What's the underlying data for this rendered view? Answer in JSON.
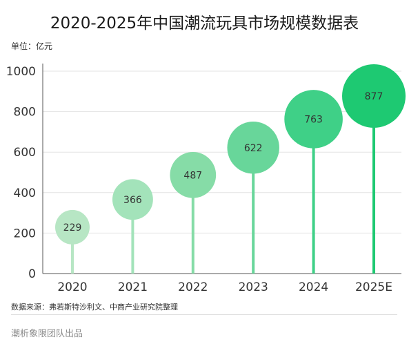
{
  "chart_data": {
    "type": "bubble-lollipop",
    "title": "2020-2025年中国潮流玩具市场规模数据表",
    "unit_label": "单位：亿元",
    "categories": [
      "2020",
      "2021",
      "2022",
      "2023",
      "2024",
      "2025E"
    ],
    "values": [
      229,
      366,
      487,
      622,
      763,
      877
    ],
    "value_labels": [
      "229",
      "366",
      "487",
      "622",
      "763",
      "877"
    ],
    "yticks": [
      0,
      200,
      400,
      600,
      800,
      1000
    ],
    "ytick_labels": [
      "0",
      "200",
      "400",
      "600",
      "800",
      "1000"
    ],
    "ylim": [
      0,
      1000
    ],
    "grid": true,
    "colors": [
      "#b7e6c4",
      "#a3e3ba",
      "#86dca7",
      "#68d69a",
      "#3fd087",
      "#1ec972"
    ]
  },
  "source_text": "数据来源：弗若斯特沙利文、中商产业研究院整理",
  "brand_text": "潮析象限团队出品"
}
